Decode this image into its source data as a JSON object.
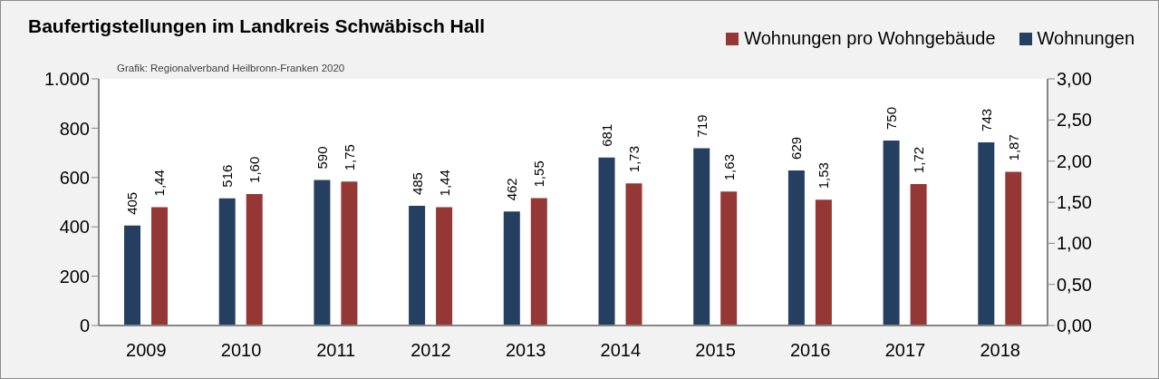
{
  "chart_data": {
    "type": "bar",
    "title": "Baufertigstellungen im Landkreis Schwäbisch Hall",
    "annotations": [
      "Grafik: Regionalverband Heilbronn-Franken 2020"
    ],
    "categories": [
      "2009",
      "2010",
      "2011",
      "2012",
      "2013",
      "2014",
      "2015",
      "2016",
      "2017",
      "2018"
    ],
    "series": [
      {
        "name": "Wohnungen",
        "color": "#243f60",
        "values": [
          405,
          516,
          590,
          485,
          462,
          681,
          719,
          629,
          750,
          743
        ],
        "value_labels": [
          "405",
          "516",
          "590",
          "485",
          "462",
          "681",
          "719",
          "629",
          "750",
          "743"
        ]
      },
      {
        "name": "Wohnungen pro Wohngebäude",
        "color": "#953735",
        "axis": "y2",
        "values": [
          1.44,
          1.6,
          1.75,
          1.44,
          1.55,
          1.73,
          1.63,
          1.53,
          1.72,
          1.87
        ],
        "value_labels": [
          "1,44",
          "1,60",
          "1,75",
          "1,44",
          "1,55",
          "1,73",
          "1,63",
          "1,53",
          "1,72",
          "1,87"
        ]
      }
    ],
    "ylim": [
      0,
      1000
    ],
    "yticks": [
      0,
      200,
      400,
      600,
      800,
      {
        "value": 1000,
        "label": "1.000"
      }
    ],
    "y2lim": [
      0,
      3
    ],
    "y2ticks": [
      {
        "value": 0,
        "label": "0,00"
      },
      {
        "value": 0.5,
        "label": "0,50"
      },
      {
        "value": 1,
        "label": "1,00"
      },
      {
        "value": 1.5,
        "label": "1,50"
      },
      {
        "value": 2,
        "label": "2,00"
      },
      {
        "value": 2.5,
        "label": "2,50"
      },
      {
        "value": 3,
        "label": "3,00"
      }
    ],
    "legend": "top right"
  }
}
